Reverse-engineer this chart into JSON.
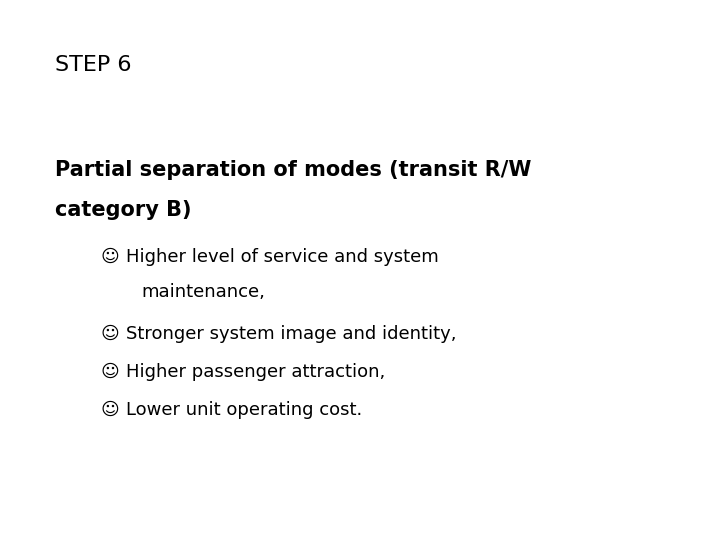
{
  "background_color": "#ffffff",
  "title": "STEP 6",
  "title_fontsize": 16,
  "title_fontweight": "normal",
  "subtitle_line1": "Partial separation of modes (transit R/W",
  "subtitle_line2": "category B)",
  "subtitle_fontsize": 15,
  "subtitle_fontweight": "bold",
  "bullet_symbol": "☺",
  "bullets": [
    {
      "text1": "Higher level of service and system",
      "text2": "    maintenance,"
    },
    {
      "text1": "Stronger system image and identity,",
      "text2": null
    },
    {
      "text1": "Higher passenger attraction,",
      "text2": null
    },
    {
      "text1": "Lower unit operating cost.",
      "text2": null
    }
  ],
  "bullet_fontsize": 13,
  "text_color": "#000000",
  "font_family": "DejaVu Sans"
}
